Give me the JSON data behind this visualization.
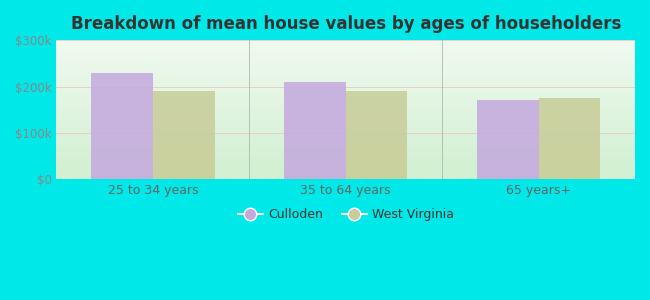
{
  "title": "Breakdown of mean house values by ages of householders",
  "categories": [
    "25 to 34 years",
    "35 to 64 years",
    "65 years+"
  ],
  "culloden_values": [
    230000,
    210000,
    170000
  ],
  "wv_values": [
    190000,
    190000,
    175000
  ],
  "bar_color_culloden": "#c4a8de",
  "bar_color_wv": "#c8cc96",
  "ylim": [
    0,
    300000
  ],
  "yticks": [
    0,
    100000,
    200000,
    300000
  ],
  "ytick_labels": [
    "$0",
    "$100k",
    "$200k",
    "$300k"
  ],
  "background_outer": "#00e8e8",
  "background_top": "#f0f8f0",
  "background_bottom": "#d8f0d8",
  "legend_culloden": "Culloden",
  "legend_wv": "West Virginia",
  "bar_width": 0.32,
  "title_color": "#333333",
  "tick_color": "#888888",
  "xtick_color": "#666666"
}
